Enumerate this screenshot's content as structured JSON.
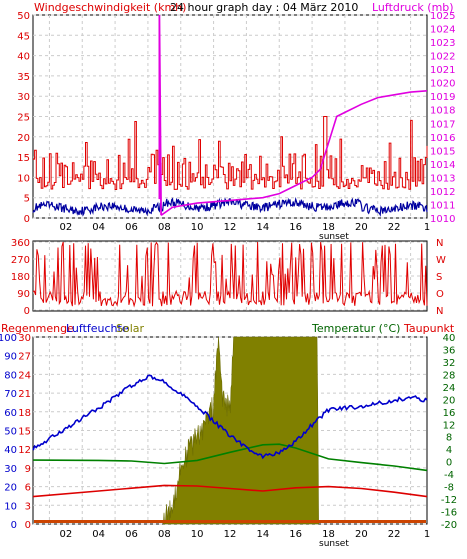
{
  "header": {
    "wind_label": "Windgeschwindigkeit (kmh)",
    "title": "24 hour graph day : 04 März 2010",
    "pressure_label": "Luftdruck (mb)"
  },
  "lower_header": {
    "rain_label": "Regenmenge",
    "humidity_label": "Luftfeuchte",
    "solar_label": "Solar",
    "temperature_label": "Temperatur (°C)",
    "dewpoint_label": "Taupunkt"
  },
  "sunset_label": "sunset",
  "colors": {
    "wind": "#e00000",
    "wind_avg": "#0000a0",
    "pressure": "#e000e0",
    "direction": "#e00000",
    "humidity": "#0000cc",
    "temperature": "#008000",
    "dewpoint": "#dd0000",
    "solar": "#808000",
    "rain": "#cc4400",
    "axis_red": "#dd0000",
    "axis_green": "#006400"
  },
  "chart_data": [
    {
      "type": "line",
      "name": "wind-pressure",
      "x_ticks": [
        "02",
        "04",
        "06",
        "08",
        "10",
        "12",
        "14",
        "16",
        "18",
        "20",
        "22",
        "1"
      ],
      "x_range_hours": [
        0,
        24
      ],
      "y_left_ticks": [
        "0",
        "5",
        "10",
        "15",
        "20",
        "25",
        "30",
        "35",
        "40",
        "45",
        "50"
      ],
      "y_left_range": [
        0,
        50
      ],
      "y_right_ticks": [
        "1010",
        "1011",
        "1012",
        "1013",
        "1014",
        "1015",
        "1016",
        "1017",
        "1018",
        "1019",
        "1020",
        "1021",
        "1022",
        "1023",
        "1024",
        "1025"
      ],
      "y_right_range": [
        1010,
        1025
      ],
      "grid": true,
      "series": [
        {
          "name": "gust",
          "axis": "left",
          "baseline": 7,
          "amplitude": 9,
          "x": [
            0,
            24
          ]
        },
        {
          "name": "average",
          "axis": "left",
          "baseline": 2.5,
          "amplitude": 2,
          "x": [
            0,
            24
          ]
        },
        {
          "name": "pressure",
          "axis": "right",
          "x": [
            7.8,
            8.5,
            10,
            12,
            14,
            15,
            16,
            17,
            17.5,
            18.5,
            19,
            20,
            21,
            22,
            23,
            24
          ],
          "y": [
            1010.2,
            1010.8,
            1011.1,
            1011.3,
            1011.5,
            1011.8,
            1012.4,
            1013.0,
            1013.6,
            1017.5,
            1017.8,
            1018.4,
            1018.9,
            1019.1,
            1019.3,
            1019.4
          ]
        },
        {
          "name": "pressure-spike",
          "axis": "right",
          "x": [
            7.7,
            7.7,
            7.8
          ],
          "y": [
            1011.4,
            1025,
            1010.2
          ]
        }
      ]
    },
    {
      "type": "scatter",
      "name": "wind-direction",
      "y_left_ticks": [
        "0",
        "90",
        "180",
        "270",
        "360"
      ],
      "y_range": [
        0,
        360
      ],
      "y_right_labels": [
        "N",
        "W",
        "S",
        "O",
        "N"
      ],
      "grid": true
    },
    {
      "type": "area",
      "name": "humidity-temperature-solar",
      "y_left_ticks": [
        "0",
        "10",
        "20",
        "30",
        "40",
        "50",
        "60",
        "70",
        "80",
        "90",
        "100"
      ],
      "y_left_range": [
        0,
        100
      ],
      "y_solar_ticks": [
        "0",
        "3",
        "6",
        "9",
        "12",
        "15",
        "18",
        "21",
        "24",
        "27",
        "30"
      ],
      "y_right_ticks": [
        "-20",
        "-16",
        "-12",
        "-8",
        "-4",
        "0",
        "4",
        "8",
        "12",
        "16",
        "20",
        "24",
        "28",
        "32",
        "36",
        "40"
      ],
      "y_right_range": [
        -20,
        40
      ],
      "grid": true,
      "series": [
        {
          "name": "humidity",
          "x": [
            0,
            2,
            4,
            6,
            7,
            8,
            9,
            10,
            11,
            12,
            13,
            14,
            15,
            16,
            17,
            18,
            20,
            22,
            23,
            24
          ],
          "y": [
            40,
            51,
            62,
            74,
            79,
            76,
            70,
            63,
            55,
            47,
            41,
            36,
            38,
            44,
            53,
            61,
            63,
            66,
            68,
            66
          ]
        },
        {
          "name": "temperature",
          "x": [
            0,
            4,
            6,
            8,
            10,
            12,
            14,
            15,
            16,
            18,
            20,
            22,
            24
          ],
          "y": [
            0.5,
            0.4,
            0.2,
            -0.6,
            0.4,
            3.0,
            5.4,
            5.6,
            4.4,
            0.9,
            -0.3,
            -1.4,
            -2.8
          ]
        },
        {
          "name": "dewpoint",
          "x": [
            0,
            4,
            6,
            8,
            10,
            12,
            14,
            16,
            18,
            20,
            22,
            24
          ],
          "y": [
            -11.2,
            -9.4,
            -8.5,
            -7.6,
            -7.8,
            -8.6,
            -9.4,
            -8.4,
            -8.0,
            -8.6,
            -9.8,
            -11.2
          ]
        },
        {
          "name": "solar",
          "x": [
            7.9,
            8.5,
            9,
            9.5,
            10,
            10.5,
            11,
            11.3,
            11.5,
            12,
            12.2,
            12.5,
            13,
            13.5,
            14,
            14.5,
            15,
            15.5,
            16,
            16.5,
            17,
            17.3,
            17.4
          ],
          "y": [
            0,
            3,
            9,
            12,
            14,
            16,
            19,
            30,
            21,
            18,
            30,
            30,
            30,
            30,
            30,
            30,
            30,
            30,
            30,
            30,
            30,
            30,
            0
          ]
        },
        {
          "name": "rain",
          "x": [
            0,
            24
          ],
          "y": [
            0,
            0
          ]
        }
      ]
    }
  ]
}
